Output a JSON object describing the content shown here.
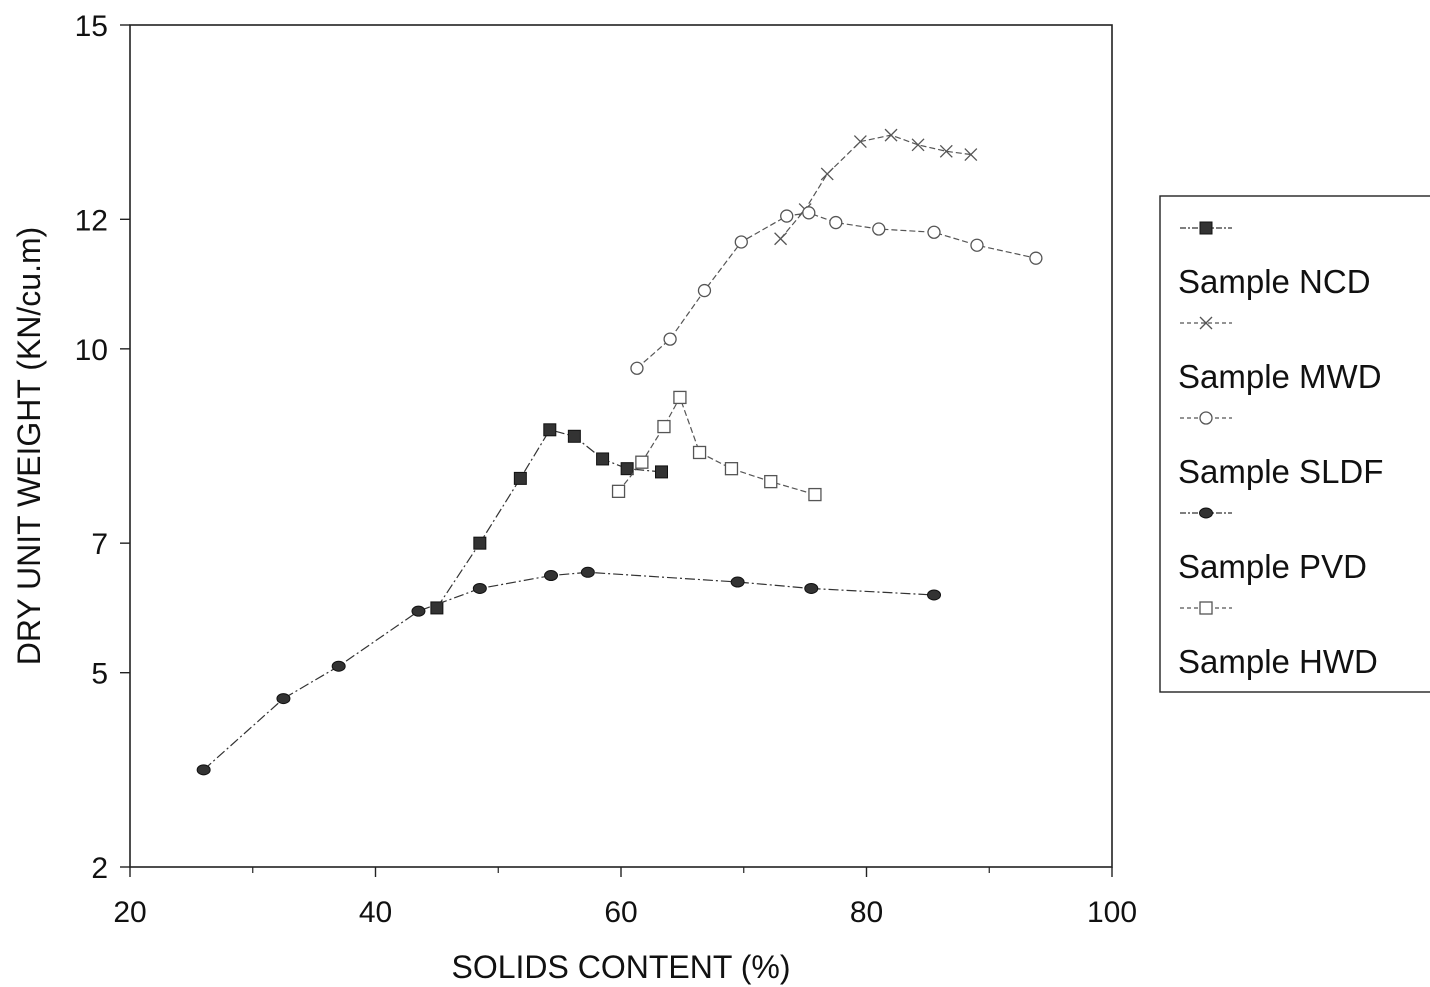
{
  "chart_data": {
    "type": "line",
    "xlabel": "SOLIDS CONTENT  (%)",
    "ylabel": "DRY UNIT WEIGHT  (KN/cu.m)",
    "xlim": [
      20,
      100
    ],
    "ylim": [
      2,
      15
    ],
    "x_ticks": [
      "20",
      "40",
      "60",
      "80",
      "100"
    ],
    "y_ticks": [
      "2",
      "5",
      "7",
      "10",
      "12",
      "15"
    ],
    "grid": false,
    "legend_position": "right",
    "series": [
      {
        "name": "Sample NCD",
        "marker": "filled-square",
        "color": "#333333",
        "points": [
          [
            45.0,
            6.0
          ],
          [
            48.5,
            7.0
          ],
          [
            51.8,
            8.0
          ],
          [
            54.2,
            8.75
          ],
          [
            56.2,
            8.65
          ],
          [
            58.5,
            8.3
          ],
          [
            60.5,
            8.15
          ],
          [
            63.3,
            8.1
          ]
        ]
      },
      {
        "name": "Sample MWD",
        "marker": "cross",
        "color": "#555555",
        "points": [
          [
            73.0,
            11.7
          ],
          [
            75.0,
            12.15
          ],
          [
            76.8,
            12.7
          ],
          [
            79.5,
            13.2
          ],
          [
            82.0,
            13.3
          ],
          [
            84.2,
            13.15
          ],
          [
            86.5,
            13.05
          ],
          [
            88.5,
            13.0
          ]
        ]
      },
      {
        "name": "Sample SLDF",
        "marker": "open-circle",
        "color": "#555555",
        "points": [
          [
            61.3,
            9.7
          ],
          [
            64.0,
            10.15
          ],
          [
            66.8,
            10.9
          ],
          [
            69.8,
            11.65
          ],
          [
            73.5,
            12.05
          ],
          [
            75.3,
            12.1
          ],
          [
            77.5,
            11.95
          ],
          [
            81.0,
            11.85
          ],
          [
            85.5,
            11.8
          ],
          [
            89.0,
            11.6
          ],
          [
            93.8,
            11.4
          ]
        ]
      },
      {
        "name": "Sample PVD",
        "marker": "filled-circle",
        "color": "#333333",
        "points": [
          [
            26.0,
            3.5
          ],
          [
            32.5,
            4.6
          ],
          [
            37.0,
            5.1
          ],
          [
            43.5,
            5.95
          ],
          [
            48.5,
            6.3
          ],
          [
            54.3,
            6.5
          ],
          [
            57.3,
            6.55
          ],
          [
            69.5,
            6.4
          ],
          [
            75.5,
            6.3
          ],
          [
            85.5,
            6.2
          ]
        ]
      },
      {
        "name": "Sample HWD",
        "marker": "open-square",
        "color": "#555555",
        "points": [
          [
            59.8,
            7.8
          ],
          [
            61.7,
            8.25
          ],
          [
            63.5,
            8.8
          ],
          [
            64.8,
            9.25
          ],
          [
            66.4,
            8.4
          ],
          [
            69.0,
            8.15
          ],
          [
            72.2,
            7.95
          ],
          [
            75.8,
            7.75
          ]
        ]
      }
    ]
  }
}
